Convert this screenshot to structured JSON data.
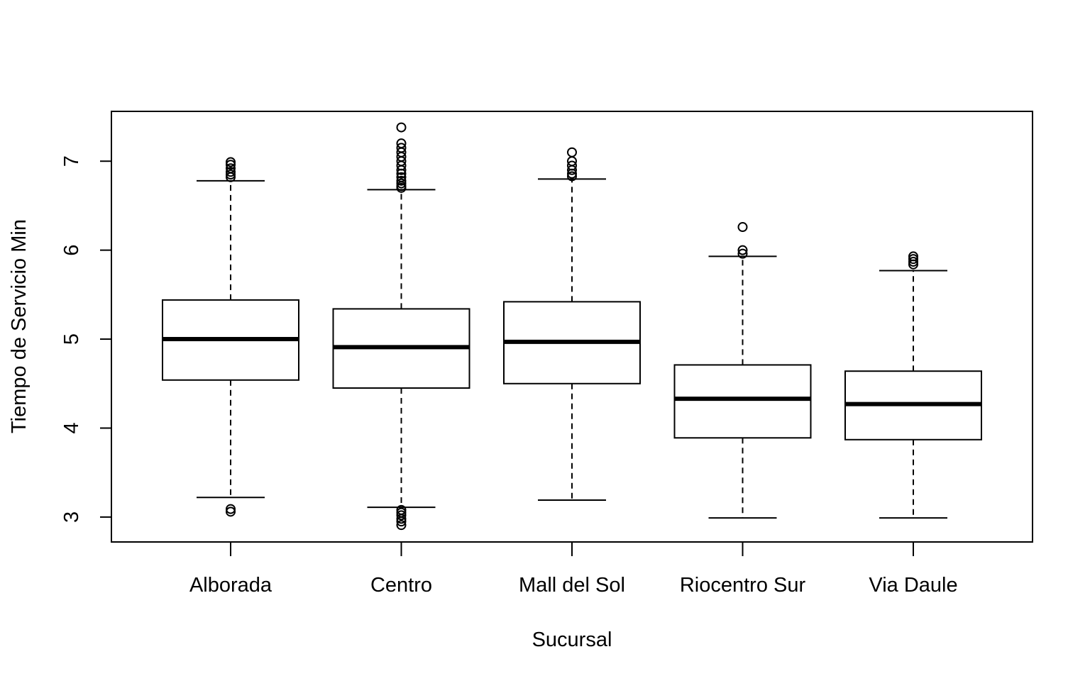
{
  "chart_data": {
    "type": "boxplot",
    "xlabel": "Sucursal",
    "ylabel": "Tiempo de Servicio Min",
    "ylim": [
      2.72,
      7.56
    ],
    "yticks": [
      3,
      4,
      5,
      6,
      7
    ],
    "categories": [
      "Alborada",
      "Centro",
      "Mall del Sol",
      "Riocentro Sur",
      "Via Daule"
    ],
    "boxes": [
      {
        "category": "Alborada",
        "whisker_low": 3.22,
        "q1": 4.54,
        "median": 5.0,
        "q3": 5.44,
        "whisker_high": 6.78,
        "outliers": [
          6.82,
          6.85,
          6.88,
          6.92,
          6.96,
          6.99,
          3.06,
          3.09
        ]
      },
      {
        "category": "Centro",
        "whisker_low": 3.11,
        "q1": 4.45,
        "median": 4.91,
        "q3": 5.34,
        "whisker_high": 6.68,
        "outliers": [
          6.7,
          6.72,
          6.75,
          6.78,
          6.82,
          6.86,
          6.9,
          6.95,
          7.0,
          7.05,
          7.1,
          7.15,
          7.2,
          7.38,
          3.08,
          3.05,
          3.02,
          2.98,
          2.95,
          2.91
        ]
      },
      {
        "category": "Mall del Sol",
        "whisker_low": 3.19,
        "q1": 4.5,
        "median": 4.97,
        "q3": 5.42,
        "whisker_high": 6.8,
        "outliers": [
          6.83,
          6.86,
          6.9,
          6.95,
          7.0,
          7.1
        ]
      },
      {
        "category": "Riocentro Sur",
        "whisker_low": 2.99,
        "q1": 3.89,
        "median": 4.33,
        "q3": 4.71,
        "whisker_high": 5.93,
        "outliers": [
          5.96,
          6.0,
          6.26
        ]
      },
      {
        "category": "Via Daule",
        "whisker_low": 2.99,
        "q1": 3.87,
        "median": 4.27,
        "q3": 4.64,
        "whisker_high": 5.77,
        "outliers": [
          5.84,
          5.87,
          5.9,
          5.93
        ]
      }
    ]
  }
}
